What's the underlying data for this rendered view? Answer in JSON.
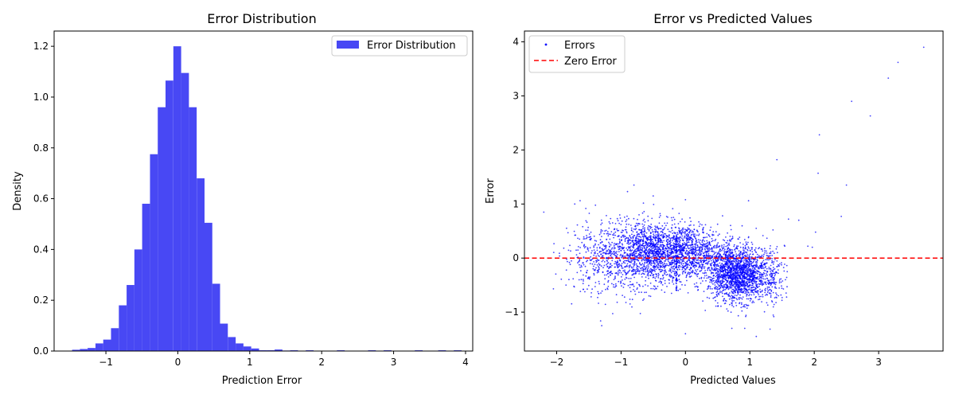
{
  "chart_data": [
    {
      "type": "bar",
      "title": "Error Distribution",
      "xlabel": "Prediction Error",
      "ylabel": "Density",
      "xlim": [
        -1.72,
        4.1
      ],
      "ylim": [
        0,
        1.26
      ],
      "xticks": [
        -1,
        0,
        1,
        2,
        3,
        4
      ],
      "yticks": [
        0.0,
        0.2,
        0.4,
        0.6,
        0.8,
        1.0,
        1.2
      ],
      "xtick_labels": [
        "−1",
        "0",
        "1",
        "2",
        "3",
        "4"
      ],
      "ytick_labels": [
        "0.0",
        "0.2",
        "0.4",
        "0.6",
        "0.8",
        "1.0",
        "1.2"
      ],
      "legend": {
        "entries": [
          "Error Distribution"
        ],
        "placement": "upper-right"
      },
      "color": "#4848f4",
      "bin_width": 0.1082,
      "bins": [
        {
          "x0": -1.47,
          "d": 0.005
        },
        {
          "x0": -1.362,
          "d": 0.008
        },
        {
          "x0": -1.254,
          "d": 0.012
        },
        {
          "x0": -1.145,
          "d": 0.03
        },
        {
          "x0": -1.037,
          "d": 0.045
        },
        {
          "x0": -0.929,
          "d": 0.09
        },
        {
          "x0": -0.82,
          "d": 0.18
        },
        {
          "x0": -0.712,
          "d": 0.26
        },
        {
          "x0": -0.604,
          "d": 0.4
        },
        {
          "x0": -0.496,
          "d": 0.58
        },
        {
          "x0": -0.387,
          "d": 0.775
        },
        {
          "x0": -0.279,
          "d": 0.96
        },
        {
          "x0": -0.171,
          "d": 1.065
        },
        {
          "x0": -0.062,
          "d": 1.2
        },
        {
          "x0": 0.046,
          "d": 1.095
        },
        {
          "x0": 0.154,
          "d": 0.96
        },
        {
          "x0": 0.263,
          "d": 0.68
        },
        {
          "x0": 0.371,
          "d": 0.505
        },
        {
          "x0": 0.479,
          "d": 0.265
        },
        {
          "x0": 0.587,
          "d": 0.108
        },
        {
          "x0": 0.696,
          "d": 0.055
        },
        {
          "x0": 0.804,
          "d": 0.03
        },
        {
          "x0": 0.912,
          "d": 0.018
        },
        {
          "x0": 1.021,
          "d": 0.01
        },
        {
          "x0": 1.129,
          "d": 0.003
        },
        {
          "x0": 1.237,
          "d": 0.003
        },
        {
          "x0": 1.346,
          "d": 0.006
        },
        {
          "x0": 1.454,
          "d": 0.002
        },
        {
          "x0": 1.562,
          "d": 0.003
        },
        {
          "x0": 1.779,
          "d": 0.003
        },
        {
          "x0": 2.212,
          "d": 0.003
        },
        {
          "x0": 2.645,
          "d": 0.003
        },
        {
          "x0": 2.862,
          "d": 0.003
        },
        {
          "x0": 3.295,
          "d": 0.003
        },
        {
          "x0": 3.62,
          "d": 0.003
        },
        {
          "x0": 3.837,
          "d": 0.003
        }
      ]
    },
    {
      "type": "scatter",
      "title": "Error vs Predicted Values",
      "xlabel": "Predicted Values",
      "ylabel": "Error",
      "xlim": [
        -2.5,
        4.0
      ],
      "ylim": [
        -1.72,
        4.2
      ],
      "xticks": [
        -2,
        -1,
        0,
        1,
        2,
        3
      ],
      "yticks": [
        -1,
        0,
        1,
        2,
        3,
        4
      ],
      "xtick_labels": [
        "−2",
        "−1",
        "0",
        "1",
        "2",
        "3"
      ],
      "ytick_labels": [
        "−1",
        "0",
        "1",
        "2",
        "3",
        "4"
      ],
      "legend": {
        "entries": [
          "Errors",
          "Zero Error"
        ],
        "placement": "upper-left"
      },
      "point_color": "#0000ff",
      "reference_line": {
        "name": "Zero Error",
        "y": 0,
        "color": "#ff0000",
        "style": "dashed"
      },
      "clusters": [
        {
          "cx": -0.5,
          "cy": 0.1,
          "sx": 0.35,
          "sy": 0.28,
          "n": 1400
        },
        {
          "cx": 0.1,
          "cy": 0.1,
          "sx": 0.3,
          "sy": 0.25,
          "n": 800
        },
        {
          "cx": 0.8,
          "cy": -0.3,
          "sx": 0.22,
          "sy": 0.25,
          "n": 1600
        },
        {
          "cx": -1.2,
          "cy": 0.0,
          "sx": 0.35,
          "sy": 0.35,
          "n": 500
        },
        {
          "cx": 1.3,
          "cy": -0.3,
          "sx": 0.18,
          "sy": 0.3,
          "n": 250
        }
      ],
      "vertical_streak": {
        "x": -0.14,
        "y_from": -0.6,
        "y_to": 0.45
      },
      "outliers": [
        {
          "x": 3.7,
          "y": 3.9
        },
        {
          "x": 3.3,
          "y": 3.62
        },
        {
          "x": 3.15,
          "y": 3.33
        },
        {
          "x": 2.58,
          "y": 2.9
        },
        {
          "x": 2.87,
          "y": 2.63
        },
        {
          "x": 2.08,
          "y": 2.28
        },
        {
          "x": 1.42,
          "y": 1.82
        },
        {
          "x": 2.06,
          "y": 1.57
        },
        {
          "x": 2.5,
          "y": 1.35
        },
        {
          "x": 2.42,
          "y": 0.77
        },
        {
          "x": 1.97,
          "y": 0.2
        },
        {
          "x": 2.02,
          "y": 0.48
        },
        {
          "x": 0.98,
          "y": 1.06
        },
        {
          "x": 1.76,
          "y": 0.7
        },
        {
          "x": 1.6,
          "y": 0.72
        },
        {
          "x": 1.9,
          "y": 0.22
        },
        {
          "x": -2.2,
          "y": 0.85
        },
        {
          "x": -2.05,
          "y": -0.57
        },
        {
          "x": -1.3,
          "y": -1.25
        },
        {
          "x": 0.0,
          "y": -1.4
        },
        {
          "x": -0.8,
          "y": 1.35
        },
        {
          "x": -0.9,
          "y": 1.23
        },
        {
          "x": -0.5,
          "y": 1.15
        },
        {
          "x": 0.0,
          "y": 1.08
        },
        {
          "x": 0.72,
          "y": -1.3
        },
        {
          "x": 1.1,
          "y": -1.45
        },
        {
          "x": 0.92,
          "y": -1.3
        }
      ]
    }
  ]
}
